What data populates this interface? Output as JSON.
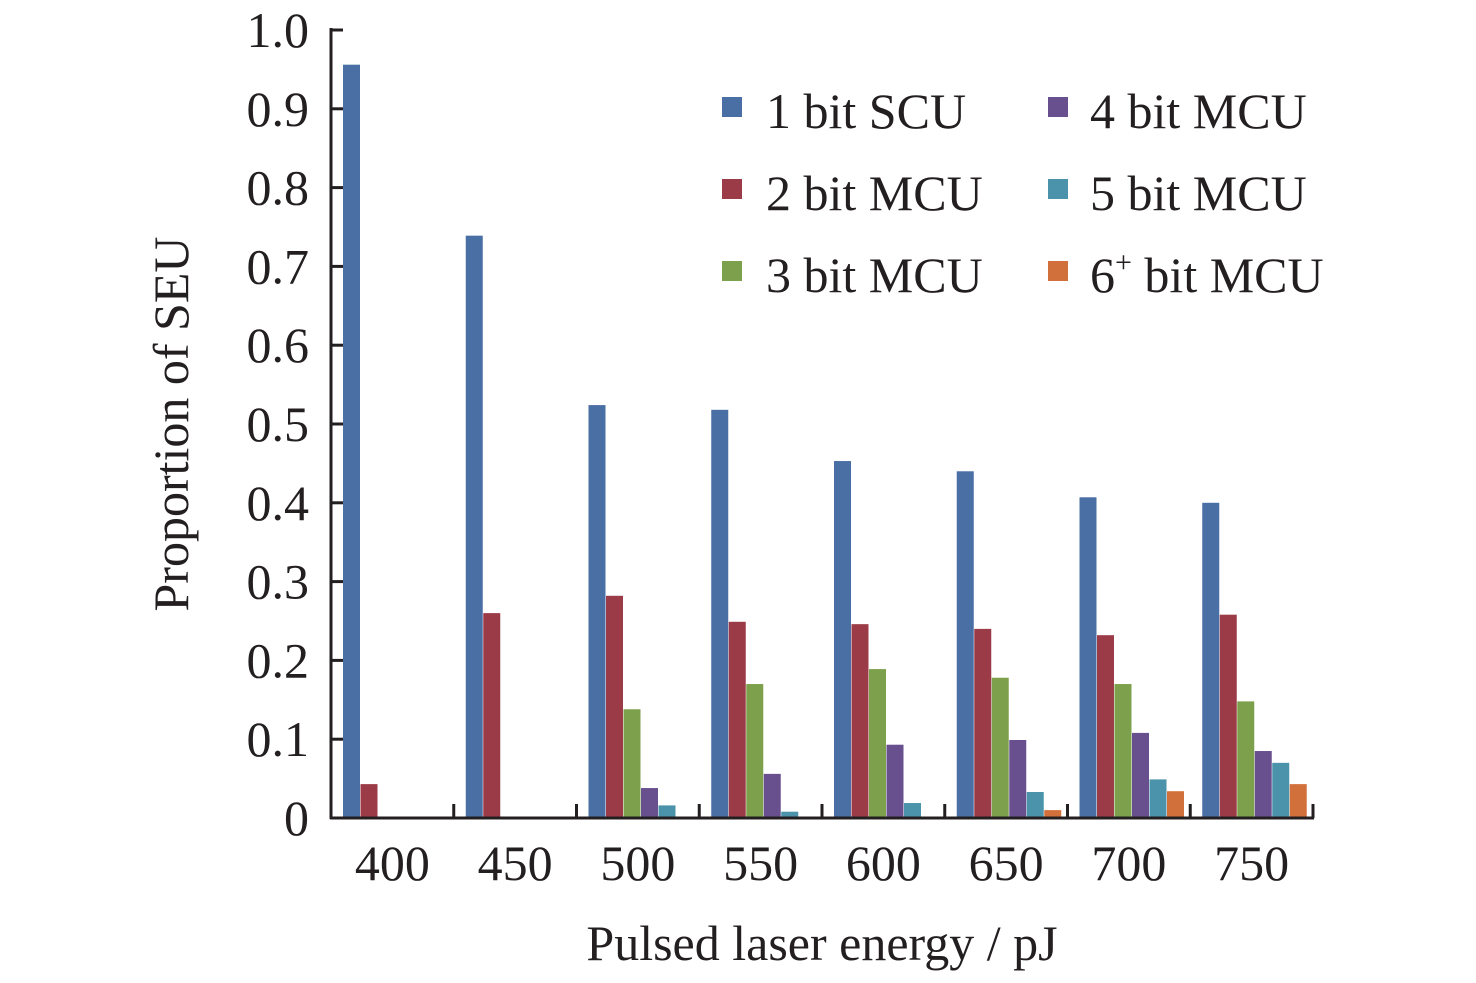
{
  "chart_data": {
    "type": "bar",
    "title": "",
    "xlabel": "Pulsed laser energy / pJ",
    "ylabel": "Proportion of SEU",
    "ylim": [
      0,
      1.0
    ],
    "yticks": [
      "0",
      "0.1",
      "0.2",
      "0.3",
      "0.4",
      "0.5",
      "0.6",
      "0.7",
      "0.8",
      "0.9",
      "1.0"
    ],
    "categories": [
      "400",
      "450",
      "500",
      "550",
      "600",
      "650",
      "700",
      "750"
    ],
    "legend_placement": "top-right",
    "series": [
      {
        "name": "1 bit SCU",
        "color": "#4a6fa5",
        "values": [
          0.956,
          0.739,
          0.524,
          0.518,
          0.453,
          0.44,
          0.407,
          0.4
        ]
      },
      {
        "name": "2 bit MCU",
        "color": "#9b3b47",
        "values": [
          0.043,
          0.26,
          0.282,
          0.249,
          0.246,
          0.24,
          0.232,
          0.258
        ]
      },
      {
        "name": "3 bit MCU",
        "color": "#7da04c",
        "values": [
          0,
          0,
          0.138,
          0.17,
          0.189,
          0.178,
          0.17,
          0.148
        ]
      },
      {
        "name": "4 bit MCU",
        "color": "#68508f",
        "values": [
          0,
          0,
          0.038,
          0.056,
          0.093,
          0.099,
          0.108,
          0.085
        ]
      },
      {
        "name": "5 bit MCU",
        "color": "#4a93aa",
        "values": [
          0,
          0,
          0.016,
          0.008,
          0.019,
          0.033,
          0.049,
          0.07
        ]
      },
      {
        "name": "6+ bit MCU",
        "legend_base": "6",
        "legend_sup": "+",
        "legend_rest": " bit MCU",
        "color": "#d2703b",
        "values": [
          0,
          0,
          0,
          0,
          0,
          0.01,
          0.034,
          0.043
        ]
      }
    ]
  }
}
